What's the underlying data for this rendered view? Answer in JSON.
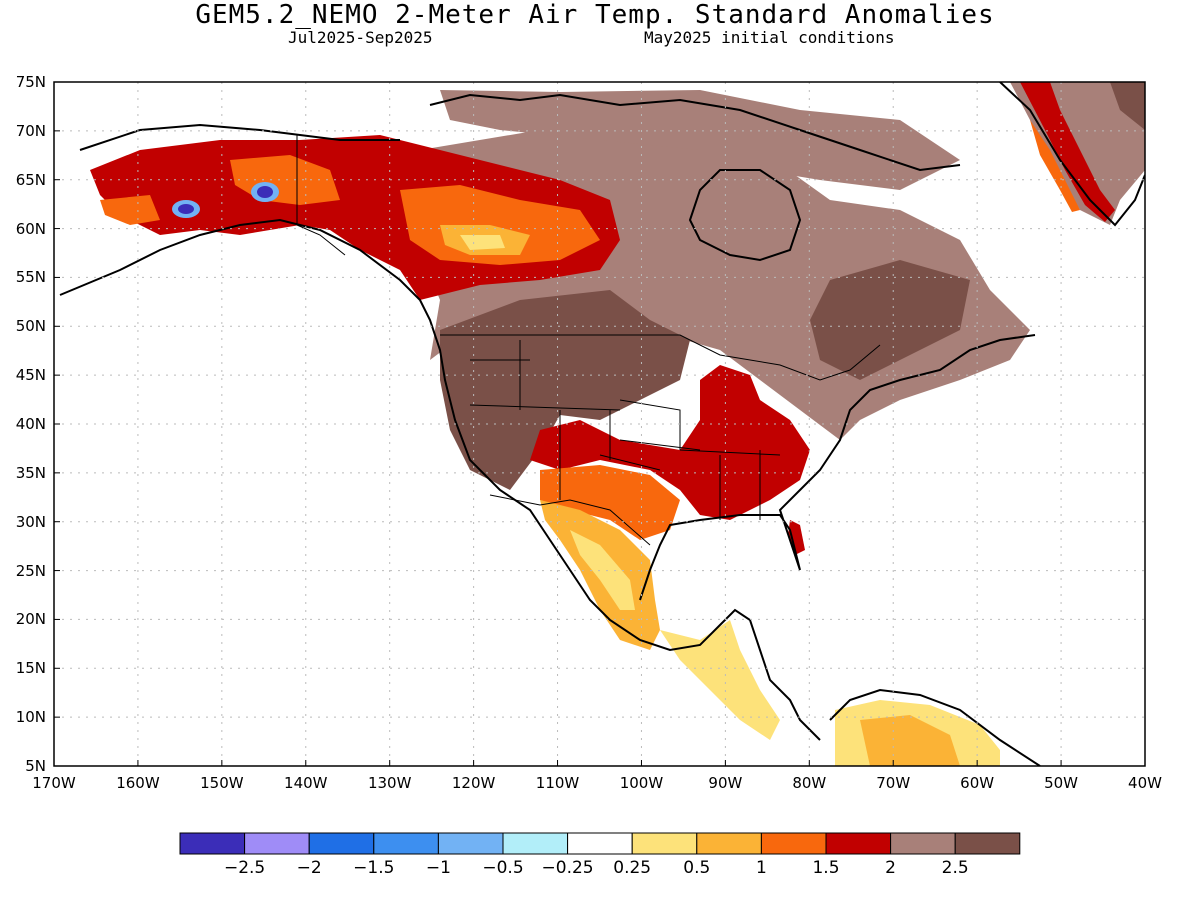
{
  "title": "GEM5.2_NEMO 2-Meter Air Temp. Standard Anomalies",
  "subtitle_left": "Jul2025-Sep2025",
  "subtitle_right": "May2025 initial conditions",
  "map": {
    "lon_range": [
      -170,
      -40
    ],
    "lat_range": [
      5,
      75
    ],
    "lat_ticks": [
      "75N",
      "70N",
      "65N",
      "60N",
      "55N",
      "50N",
      "45N",
      "40N",
      "35N",
      "30N",
      "25N",
      "20N",
      "15N",
      "10N",
      "5N"
    ],
    "lon_ticks": [
      "170W",
      "160W",
      "150W",
      "140W",
      "130W",
      "120W",
      "110W",
      "100W",
      "90W",
      "80W",
      "70W",
      "60W",
      "50W",
      "40W"
    ],
    "grid": true,
    "grid_style": "dotted"
  },
  "colorbar": {
    "colors": [
      "#3b2db8",
      "#9f8cf7",
      "#1f6fe6",
      "#3d8ff0",
      "#72b2f4",
      "#b2eef9",
      "#ffffff",
      "#fde27a",
      "#fbb336",
      "#f8680d",
      "#c10000",
      "#a88079",
      "#7a5048"
    ],
    "labels": [
      "-2.5",
      "-2",
      "-1.5",
      "-1",
      "-0.5",
      "-0.25",
      "0.25",
      "0.5",
      "1",
      "1.5",
      "2",
      "2.5"
    ]
  }
}
